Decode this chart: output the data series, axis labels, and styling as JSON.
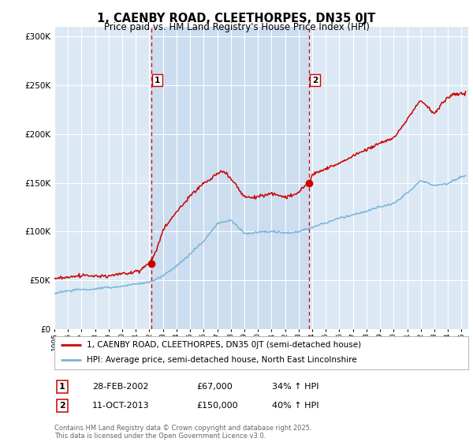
{
  "title": "1, CAENBY ROAD, CLEETHORPES, DN35 0JT",
  "subtitle": "Price paid vs. HM Land Registry's House Price Index (HPI)",
  "bg_color": "#dce9f5",
  "shade_color": "#c5d9ed",
  "legend_line1": "1, CAENBY ROAD, CLEETHORPES, DN35 0JT (semi-detached house)",
  "legend_line2": "HPI: Average price, semi-detached house, North East Lincolnshire",
  "sale1_label": "1",
  "sale1_date": "28-FEB-2002",
  "sale1_price": "£67,000",
  "sale1_hpi": "34% ↑ HPI",
  "sale2_label": "2",
  "sale2_date": "11-OCT-2013",
  "sale2_price": "£150,000",
  "sale2_hpi": "40% ↑ HPI",
  "copyright": "Contains HM Land Registry data © Crown copyright and database right 2025.\nThis data is licensed under the Open Government Licence v3.0.",
  "sale1_year": 2002.16,
  "sale1_value": 67000,
  "sale2_year": 2013.78,
  "sale2_value": 150000,
  "hpi_color": "#7ab4d8",
  "price_color": "#cc0000",
  "vline_color": "#cc0000",
  "grid_color": "#ffffff",
  "ylim_max": 310000,
  "xlim_min": 1995,
  "xlim_max": 2025.5
}
